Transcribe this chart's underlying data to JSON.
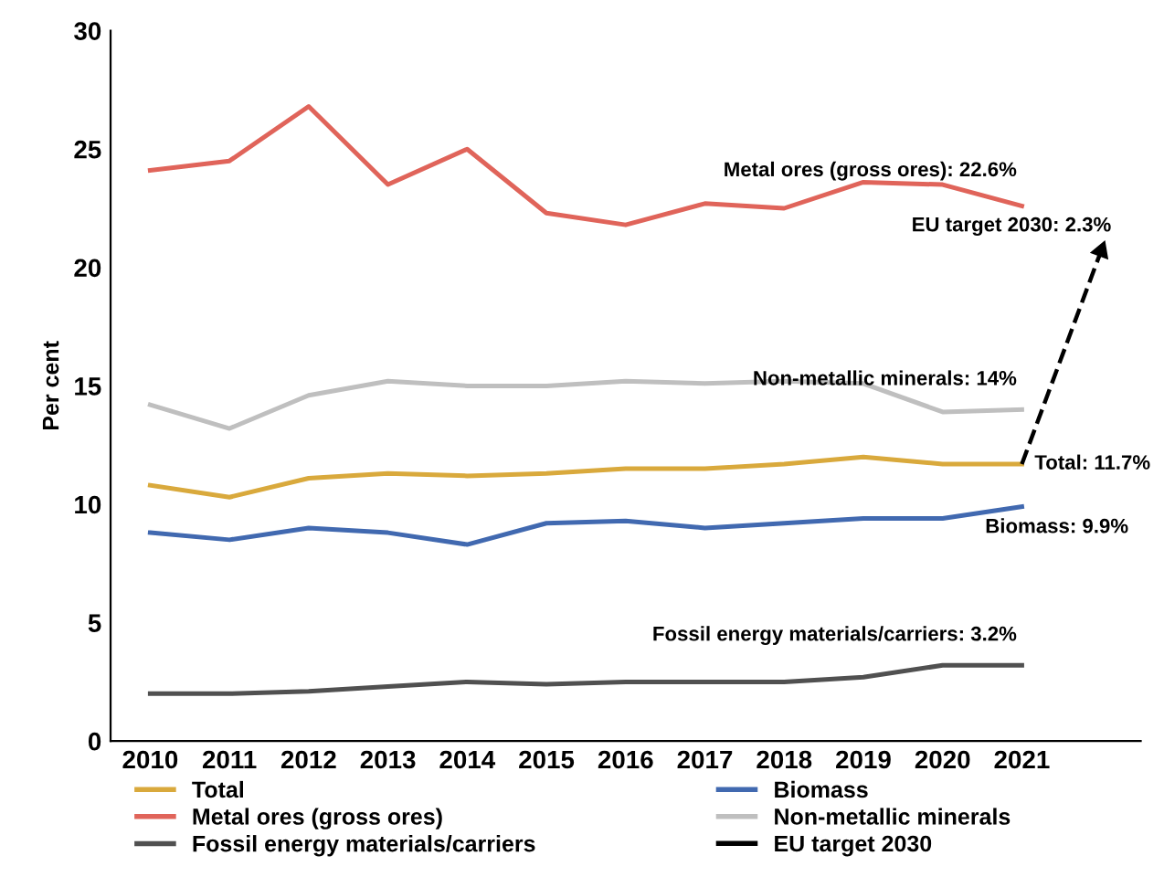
{
  "chart_data": {
    "type": "line",
    "ylabel": "Per cent",
    "categories": [
      "2010",
      "2011",
      "2012",
      "2013",
      "2014",
      "2015",
      "2016",
      "2017",
      "2018",
      "2019",
      "2020",
      "2021",
      null
    ],
    "series": [
      {
        "name": "Total",
        "color": "#d9a93c",
        "values": [
          10.8,
          10.3,
          11.1,
          11.3,
          11.2,
          11.3,
          11.5,
          11.5,
          11.7,
          12.0,
          11.7,
          11.7,
          null
        ]
      },
      {
        "name": "Metal ores (gross ores)",
        "color": "#e0645a",
        "values": [
          24.1,
          24.5,
          26.8,
          23.5,
          25.0,
          22.3,
          21.8,
          22.7,
          22.5,
          23.6,
          23.5,
          22.6,
          null
        ]
      },
      {
        "name": "Fossil energy materials/carriers",
        "color": "#505050",
        "values": [
          2.0,
          2.0,
          2.1,
          2.3,
          2.5,
          2.4,
          2.5,
          2.5,
          2.5,
          2.7,
          3.2,
          3.2,
          null
        ]
      },
      {
        "name": "Biomass",
        "color": "#4169b0",
        "values": [
          8.8,
          8.5,
          9.0,
          8.8,
          8.3,
          9.2,
          9.3,
          9.0,
          9.2,
          9.4,
          9.4,
          9.9,
          null
        ]
      },
      {
        "name": "Non-metallic minerals",
        "color": "#bfbfbf",
        "values": [
          14.2,
          13.2,
          14.6,
          15.2,
          15.0,
          15.0,
          15.2,
          15.1,
          15.2,
          15.1,
          13.9,
          14.0,
          null
        ]
      },
      {
        "name": "EU target 2030",
        "color": "#000000",
        "line_style": "dashed",
        "marker": "triangle",
        "values": [
          null,
          null,
          null,
          null,
          null,
          null,
          null,
          null,
          null,
          null,
          null,
          11.7,
          20.7
        ]
      }
    ],
    "ylim": [
      0,
      30
    ],
    "yticks": [
      0,
      5,
      10,
      15,
      20,
      25,
      30
    ],
    "grid": false,
    "legend": "bottom",
    "marker": "none",
    "line_style": "solid",
    "annotations": [
      {
        "text": "Metal ores (gross ores): 22.6%",
        "x": "2021",
        "y": 22.6
      },
      "EU target 2030: 2.3%",
      {
        "text": "Non-metallic minerals: 14%",
        "x": "2021",
        "y": 14.0
      },
      {
        "text": "Total: 11.7%",
        "x": "2021",
        "y": 11.7
      },
      {
        "text": "Biomass: 9.9%",
        "x": "2021",
        "y": 9.9
      },
      {
        "text": "Fossil energy materials/carriers: 3.2%",
        "x": "2021",
        "y": 3.2
      }
    ]
  }
}
